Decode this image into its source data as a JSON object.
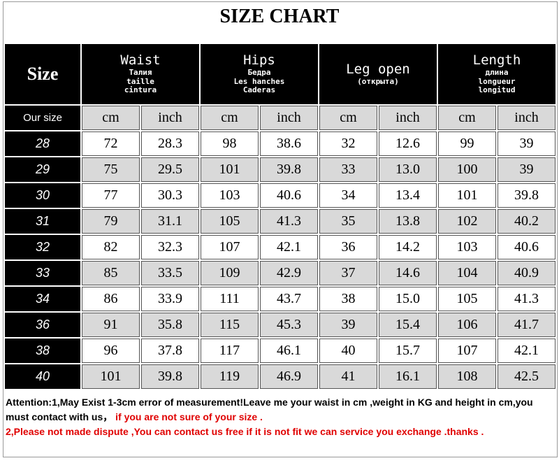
{
  "title": "SIZE CHART",
  "header": {
    "size": "Size",
    "waist": {
      "label": "Waist",
      "ru": "Талия",
      "fr": "taille",
      "es": "cintura"
    },
    "hips": {
      "label": "Hips",
      "ru": "Бедра",
      "fr": "Les hanches",
      "es": "Caderas"
    },
    "leg": {
      "label": "Leg open",
      "ru": "(открыта)"
    },
    "length": {
      "label": "Length",
      "ru": "длина",
      "fr": "longueur",
      "es": "longitud"
    }
  },
  "units": {
    "our_size": "Our size",
    "cm": "cm",
    "inch": "inch"
  },
  "rows": [
    [
      "28",
      "72",
      "28.3",
      "98",
      "38.6",
      "32",
      "12.6",
      "99",
      "39"
    ],
    [
      "29",
      "75",
      "29.5",
      "101",
      "39.8",
      "33",
      "13.0",
      "100",
      "39"
    ],
    [
      "30",
      "77",
      "30.3",
      "103",
      "40.6",
      "34",
      "13.4",
      "101",
      "39.8"
    ],
    [
      "31",
      "79",
      "31.1",
      "105",
      "41.3",
      "35",
      "13.8",
      "102",
      "40.2"
    ],
    [
      "32",
      "82",
      "32.3",
      "107",
      "42.1",
      "36",
      "14.2",
      "103",
      "40.6"
    ],
    [
      "33",
      "85",
      "33.5",
      "109",
      "42.9",
      "37",
      "14.6",
      "104",
      "40.9"
    ],
    [
      "34",
      "86",
      "33.9",
      "111",
      "43.7",
      "38",
      "15.0",
      "105",
      "41.3"
    ],
    [
      "36",
      "91",
      "35.8",
      "115",
      "45.3",
      "39",
      "15.4",
      "106",
      "41.7"
    ],
    [
      "38",
      "96",
      "37.8",
      "117",
      "46.1",
      "40",
      "15.7",
      "107",
      "42.1"
    ],
    [
      "40",
      "101",
      "39.8",
      "119",
      "46.9",
      "41",
      "16.1",
      "108",
      "42.5"
    ]
  ],
  "notes": {
    "line1_black": "Attention:1,May Exist 1-3cm error of measurement!Leave me your waist in cm ,weight in KG and height in cm,you must contact with us，",
    "line1_red": " if you are not sure of your size .",
    "line2_red": "2,Please not made dispute ,You can contact us free if it is not fit  we can service you exchange .thanks ."
  }
}
